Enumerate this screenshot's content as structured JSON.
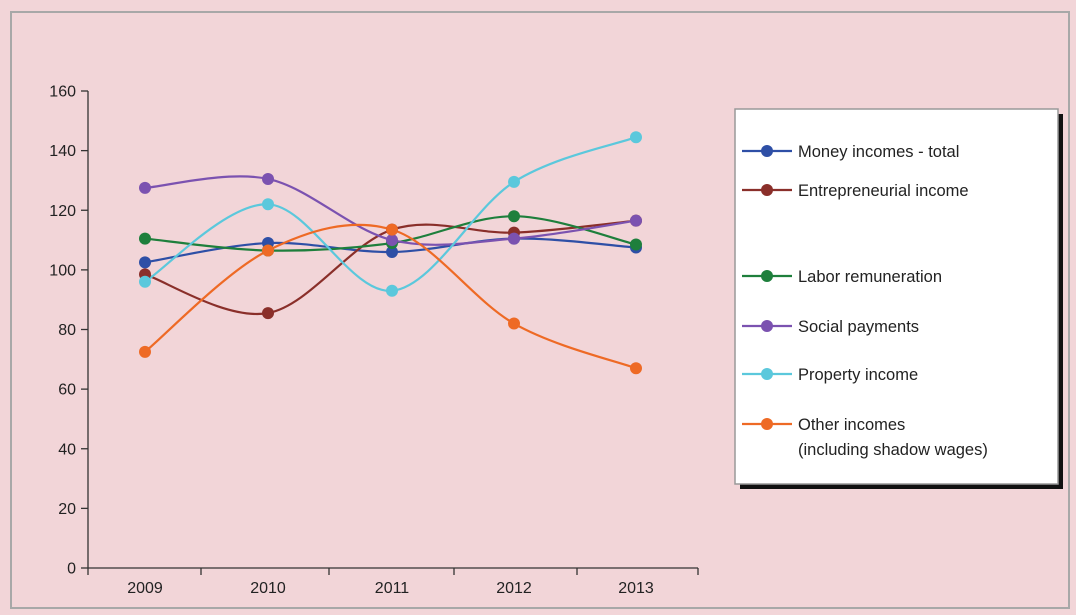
{
  "chart_data": {
    "type": "line",
    "title": "",
    "xlabel": "",
    "ylabel": "",
    "categories": [
      "2009",
      "2010",
      "2011",
      "2012",
      "2013"
    ],
    "ylim": [
      0,
      160
    ],
    "yticks": [
      0,
      20,
      40,
      60,
      80,
      100,
      120,
      140,
      160
    ],
    "grid": false,
    "legend_position": "right",
    "smooth": true,
    "series": [
      {
        "name": "Money incomes - total",
        "color": "#2e4fa6",
        "values": [
          102.5,
          109,
          106,
          110.5,
          107.5
        ]
      },
      {
        "name": "Entrepreneurial income",
        "color": "#8a2f2a",
        "values": [
          98.5,
          85.5,
          113.5,
          112.5,
          116.5
        ]
      },
      {
        "name": "Labor remuneration",
        "color": "#1e7f3c",
        "values": [
          110.5,
          106.5,
          109,
          118,
          108.5
        ]
      },
      {
        "name": "Social payments",
        "color": "#7b52b0",
        "values": [
          127.5,
          130.5,
          110,
          110.5,
          116.5
        ]
      },
      {
        "name": "Property income",
        "color": "#5bc8dc",
        "values": [
          96,
          122,
          93,
          129.5,
          144.5
        ]
      },
      {
        "name": "Other incomes\n(including shadow wages)",
        "color": "#ee6a25",
        "values": [
          72.5,
          106.5,
          113.5,
          82,
          67
        ]
      }
    ]
  }
}
